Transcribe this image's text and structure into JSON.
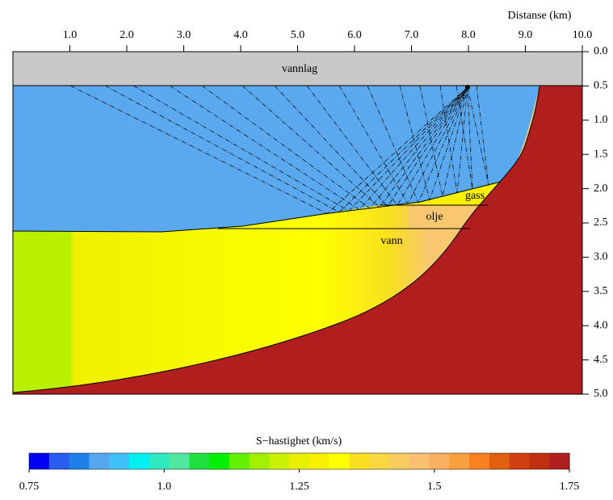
{
  "chart_data": {
    "type": "section",
    "xlabel": "Distanse (km)",
    "xlim": [
      0,
      10
    ],
    "xticks": [
      {
        "value": 1,
        "label": "1.0"
      },
      {
        "value": 2,
        "label": "2.0"
      },
      {
        "value": 3,
        "label": "3.0"
      },
      {
        "value": 4,
        "label": "4.0"
      },
      {
        "value": 5,
        "label": "5.0"
      },
      {
        "value": 6,
        "label": "6.0"
      },
      {
        "value": 7,
        "label": "7.0"
      },
      {
        "value": 8,
        "label": "8.0"
      },
      {
        "value": 9,
        "label": "9.0"
      },
      {
        "value": 10,
        "label": "10.0"
      }
    ],
    "ylim": [
      0,
      5
    ],
    "yticks": [
      {
        "value": 0,
        "label": "0.0"
      },
      0.5,
      {
        "value": 1,
        "label": "1.0"
      },
      1.5,
      {
        "value": 2,
        "label": "2.0"
      },
      2.5,
      {
        "value": 3,
        "label": "3.0"
      },
      3.5,
      {
        "value": 4,
        "label": "4.0"
      },
      4.5,
      {
        "value": 5,
        "label": "5.0"
      }
    ],
    "layers": [
      "vannlag",
      "gass",
      "olje",
      "vann"
    ],
    "colorbar": {
      "label": "S−hastighet (km/s)",
      "lim": [
        0.75,
        1.75
      ],
      "ticks": [
        0.75,
        {
          "value": 1,
          "label": "1.0"
        },
        1.25,
        1.5,
        1.75
      ],
      "colors": [
        "#0000f0",
        "#2a5cf0",
        "#1f80e8",
        "#55a8f0",
        "#40c0f8",
        "#00f0f0",
        "#30e8c0",
        "#50e8a0",
        "#20e040",
        "#00f000",
        "#60f000",
        "#a0f000",
        "#c8f000",
        "#e8f000",
        "#f8f000",
        "#ffff00",
        "#f8e020",
        "#f8d840",
        "#f8cc60",
        "#f8c070",
        "#f8b060",
        "#f8a040",
        "#f88020",
        "#e06010",
        "#d04010",
        "#c03010",
        "#b02020"
      ]
    }
  }
}
